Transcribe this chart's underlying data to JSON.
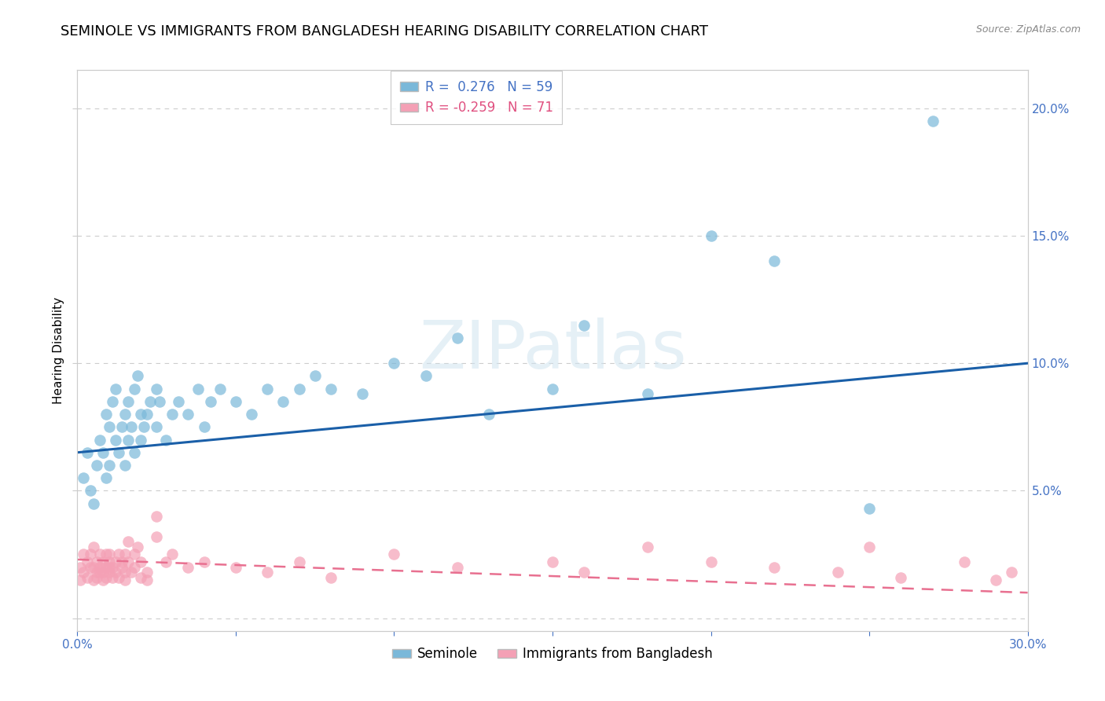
{
  "title": "SEMINOLE VS IMMIGRANTS FROM BANGLADESH HEARING DISABILITY CORRELATION CHART",
  "source": "Source: ZipAtlas.com",
  "ylabel": "Hearing Disability",
  "watermark": "ZIPatlas",
  "xlim": [
    0.0,
    0.3
  ],
  "ylim": [
    -0.005,
    0.215
  ],
  "xticks": [
    0.0,
    0.05,
    0.1,
    0.15,
    0.2,
    0.25,
    0.3
  ],
  "yticks": [
    0.0,
    0.05,
    0.1,
    0.15,
    0.2
  ],
  "background_color": "#ffffff",
  "grid_color": "#cccccc",
  "seminole_color": "#7ab8d9",
  "bangladesh_color": "#f4a0b5",
  "seminole_line_color": "#1a5fa8",
  "bangladesh_line_color": "#e87090",
  "seminole_R": 0.276,
  "seminole_N": 59,
  "bangladesh_R": -0.259,
  "bangladesh_N": 71,
  "title_fontsize": 13,
  "axis_label_fontsize": 11,
  "tick_fontsize": 11,
  "legend_fontsize": 12,
  "seminole_scatter_x": [
    0.002,
    0.003,
    0.004,
    0.005,
    0.006,
    0.007,
    0.008,
    0.009,
    0.009,
    0.01,
    0.01,
    0.011,
    0.012,
    0.012,
    0.013,
    0.014,
    0.015,
    0.015,
    0.016,
    0.016,
    0.017,
    0.018,
    0.018,
    0.019,
    0.02,
    0.02,
    0.021,
    0.022,
    0.023,
    0.025,
    0.025,
    0.026,
    0.028,
    0.03,
    0.032,
    0.035,
    0.038,
    0.04,
    0.042,
    0.045,
    0.05,
    0.055,
    0.06,
    0.065,
    0.07,
    0.075,
    0.08,
    0.09,
    0.1,
    0.11,
    0.12,
    0.13,
    0.15,
    0.16,
    0.18,
    0.2,
    0.22,
    0.25,
    0.27
  ],
  "seminole_scatter_y": [
    0.055,
    0.065,
    0.05,
    0.045,
    0.06,
    0.07,
    0.065,
    0.055,
    0.08,
    0.075,
    0.06,
    0.085,
    0.07,
    0.09,
    0.065,
    0.075,
    0.06,
    0.08,
    0.085,
    0.07,
    0.075,
    0.065,
    0.09,
    0.095,
    0.07,
    0.08,
    0.075,
    0.08,
    0.085,
    0.075,
    0.09,
    0.085,
    0.07,
    0.08,
    0.085,
    0.08,
    0.09,
    0.075,
    0.085,
    0.09,
    0.085,
    0.08,
    0.09,
    0.085,
    0.09,
    0.095,
    0.09,
    0.088,
    0.1,
    0.095,
    0.11,
    0.08,
    0.09,
    0.115,
    0.088,
    0.15,
    0.14,
    0.043,
    0.195
  ],
  "bangladesh_scatter_x": [
    0.001,
    0.001,
    0.002,
    0.002,
    0.003,
    0.003,
    0.004,
    0.004,
    0.005,
    0.005,
    0.005,
    0.006,
    0.006,
    0.006,
    0.007,
    0.007,
    0.007,
    0.008,
    0.008,
    0.008,
    0.009,
    0.009,
    0.009,
    0.01,
    0.01,
    0.01,
    0.01,
    0.011,
    0.011,
    0.012,
    0.012,
    0.013,
    0.013,
    0.014,
    0.014,
    0.015,
    0.015,
    0.015,
    0.016,
    0.016,
    0.017,
    0.018,
    0.018,
    0.019,
    0.02,
    0.02,
    0.022,
    0.022,
    0.025,
    0.025,
    0.028,
    0.03,
    0.035,
    0.04,
    0.05,
    0.06,
    0.07,
    0.08,
    0.1,
    0.12,
    0.15,
    0.16,
    0.18,
    0.2,
    0.22,
    0.24,
    0.25,
    0.26,
    0.28,
    0.29,
    0.295
  ],
  "bangladesh_scatter_y": [
    0.02,
    0.015,
    0.025,
    0.018,
    0.022,
    0.016,
    0.02,
    0.025,
    0.015,
    0.02,
    0.028,
    0.018,
    0.022,
    0.016,
    0.02,
    0.025,
    0.018,
    0.015,
    0.022,
    0.018,
    0.02,
    0.025,
    0.016,
    0.018,
    0.022,
    0.02,
    0.025,
    0.016,
    0.02,
    0.022,
    0.018,
    0.025,
    0.016,
    0.02,
    0.022,
    0.015,
    0.018,
    0.025,
    0.022,
    0.03,
    0.018,
    0.02,
    0.025,
    0.028,
    0.016,
    0.022,
    0.018,
    0.015,
    0.04,
    0.032,
    0.022,
    0.025,
    0.02,
    0.022,
    0.02,
    0.018,
    0.022,
    0.016,
    0.025,
    0.02,
    0.022,
    0.018,
    0.028,
    0.022,
    0.02,
    0.018,
    0.028,
    0.016,
    0.022,
    0.015,
    0.018
  ],
  "sem_line_x0": 0.0,
  "sem_line_y0": 0.065,
  "sem_line_x1": 0.3,
  "sem_line_y1": 0.1,
  "ban_line_x0": 0.0,
  "ban_line_y0": 0.023,
  "ban_line_x1": 0.3,
  "ban_line_y1": 0.01
}
